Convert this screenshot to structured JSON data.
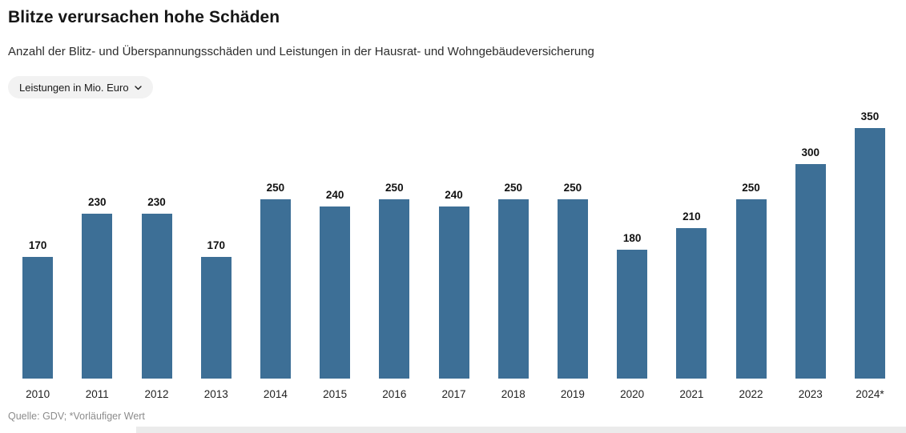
{
  "header": {
    "title": "Blitze verursachen hohe Schäden",
    "subtitle": "Anzahl der Blitz- und Überspannungsschäden und Leistungen in der Hausrat- und Wohngebäudeversicherung"
  },
  "filter": {
    "selected_label": "Leistungen in Mio. Euro"
  },
  "chart_data": {
    "type": "bar",
    "title": "Blitze verursachen hohe Schäden",
    "unit": "Leistungen in Mio. Euro",
    "categories": [
      "2010",
      "2011",
      "2012",
      "2013",
      "2014",
      "2015",
      "2016",
      "2017",
      "2018",
      "2019",
      "2020",
      "2021",
      "2022",
      "2023",
      "2024*"
    ],
    "values": [
      170,
      230,
      230,
      170,
      250,
      240,
      250,
      240,
      250,
      250,
      180,
      210,
      250,
      300,
      350
    ],
    "xlabel": "",
    "ylabel": "Leistungen in Mio. Euro",
    "ylim": [
      0,
      350
    ],
    "grid": false,
    "legend_position": "none",
    "data_labels": true,
    "bar_color": "#3d6f96",
    "label_color": "#111111"
  },
  "footer": {
    "source": "Quelle: GDV; *Vorläufiger Wert"
  }
}
